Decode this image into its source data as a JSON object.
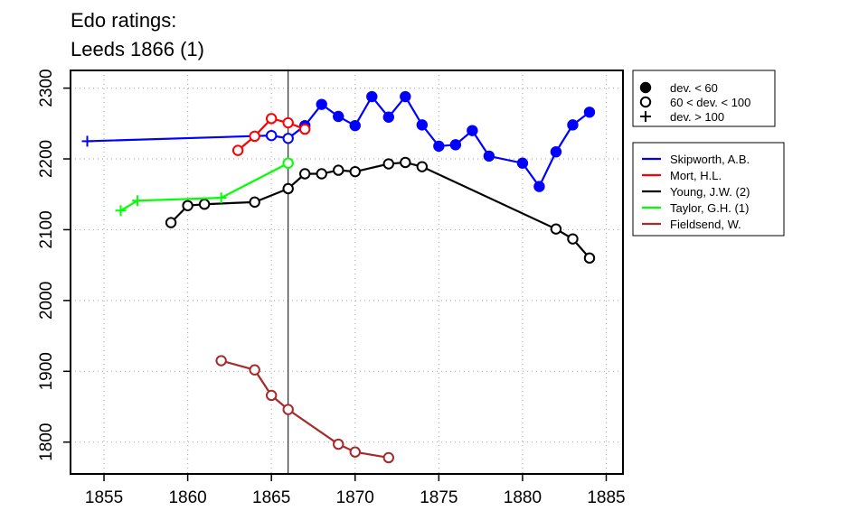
{
  "chart_data": {
    "type": "line",
    "title_lines": [
      "Edo ratings:",
      "Leeds 1866 (1)"
    ],
    "xlabel": "",
    "ylabel": "",
    "xlim": [
      1853,
      1886
    ],
    "ylim": [
      1755,
      2325
    ],
    "x_ticks": [
      1855,
      1860,
      1865,
      1870,
      1875,
      1880,
      1885
    ],
    "y_ticks": [
      1800,
      1900,
      2000,
      2100,
      2200,
      2300
    ],
    "grid": true,
    "reference_line_x": 1866,
    "marker_legend": {
      "placement": "top-right, outside plot",
      "items": [
        {
          "marker": "filled",
          "label": "dev. < 60"
        },
        {
          "marker": "open",
          "label": "60 < dev. < 100"
        },
        {
          "marker": "plus",
          "label": "dev. > 100"
        }
      ]
    },
    "series_legend_placement": "right, outside plot",
    "series": [
      {
        "name": "Skipworth, A.B.",
        "color": "#0000ff",
        "points": [
          {
            "x": 1854,
            "y": 2225,
            "m": "plus"
          },
          {
            "x": 1865,
            "y": 2233,
            "m": "open"
          },
          {
            "x": 1866,
            "y": 2229,
            "m": "open"
          },
          {
            "x": 1867,
            "y": 2247,
            "m": "filled"
          },
          {
            "x": 1868,
            "y": 2277,
            "m": "filled"
          },
          {
            "x": 1869,
            "y": 2260,
            "m": "filled"
          },
          {
            "x": 1870,
            "y": 2247,
            "m": "filled"
          },
          {
            "x": 1871,
            "y": 2288,
            "m": "filled"
          },
          {
            "x": 1872,
            "y": 2259,
            "m": "filled"
          },
          {
            "x": 1873,
            "y": 2288,
            "m": "filled"
          },
          {
            "x": 1874,
            "y": 2248,
            "m": "filled"
          },
          {
            "x": 1875,
            "y": 2218,
            "m": "filled"
          },
          {
            "x": 1876,
            "y": 2220,
            "m": "filled"
          },
          {
            "x": 1877,
            "y": 2240,
            "m": "filled"
          },
          {
            "x": 1878,
            "y": 2204,
            "m": "filled"
          },
          {
            "x": 1880,
            "y": 2194,
            "m": "filled"
          },
          {
            "x": 1881,
            "y": 2161,
            "m": "filled"
          },
          {
            "x": 1882,
            "y": 2210,
            "m": "filled"
          },
          {
            "x": 1883,
            "y": 2248,
            "m": "filled"
          },
          {
            "x": 1884,
            "y": 2266,
            "m": "filled"
          }
        ]
      },
      {
        "name": "Mort, H.L.",
        "color": "#ff0000",
        "points": [
          {
            "x": 1863,
            "y": 2212,
            "m": "open"
          },
          {
            "x": 1864,
            "y": 2232,
            "m": "open"
          },
          {
            "x": 1865,
            "y": 2257,
            "m": "open"
          },
          {
            "x": 1866,
            "y": 2251,
            "m": "open"
          },
          {
            "x": 1867,
            "y": 2242,
            "m": "open"
          }
        ]
      },
      {
        "name": "Young, J.W. (2)",
        "color": "#000000",
        "points": [
          {
            "x": 1859,
            "y": 2110,
            "m": "open"
          },
          {
            "x": 1860,
            "y": 2134,
            "m": "open"
          },
          {
            "x": 1861,
            "y": 2136,
            "m": "open"
          },
          {
            "x": 1864,
            "y": 2139,
            "m": "open"
          },
          {
            "x": 1866,
            "y": 2158,
            "m": "open"
          },
          {
            "x": 1867,
            "y": 2179,
            "m": "open"
          },
          {
            "x": 1868,
            "y": 2179,
            "m": "open"
          },
          {
            "x": 1869,
            "y": 2184,
            "m": "open"
          },
          {
            "x": 1870,
            "y": 2182,
            "m": "open"
          },
          {
            "x": 1872,
            "y": 2193,
            "m": "open"
          },
          {
            "x": 1873,
            "y": 2195,
            "m": "open"
          },
          {
            "x": 1874,
            "y": 2189,
            "m": "open"
          },
          {
            "x": 1882,
            "y": 2101,
            "m": "open"
          },
          {
            "x": 1883,
            "y": 2087,
            "m": "open"
          },
          {
            "x": 1884,
            "y": 2060,
            "m": "open"
          }
        ]
      },
      {
        "name": "Taylor, G.H. (1)",
        "color": "#00ff00",
        "points": [
          {
            "x": 1856,
            "y": 2127,
            "m": "plus"
          },
          {
            "x": 1857,
            "y": 2141,
            "m": "plus"
          },
          {
            "x": 1862,
            "y": 2145,
            "m": "plus"
          },
          {
            "x": 1866,
            "y": 2194,
            "m": "open"
          }
        ]
      },
      {
        "name": "Fieldsend, W.",
        "color": "#a52a2a",
        "points": [
          {
            "x": 1862,
            "y": 1915,
            "m": "open"
          },
          {
            "x": 1864,
            "y": 1902,
            "m": "open"
          },
          {
            "x": 1865,
            "y": 1866,
            "m": "open"
          },
          {
            "x": 1866,
            "y": 1846,
            "m": "open"
          },
          {
            "x": 1869,
            "y": 1797,
            "m": "open"
          },
          {
            "x": 1870,
            "y": 1786,
            "m": "open"
          },
          {
            "x": 1872,
            "y": 1778,
            "m": "open"
          }
        ]
      }
    ]
  }
}
